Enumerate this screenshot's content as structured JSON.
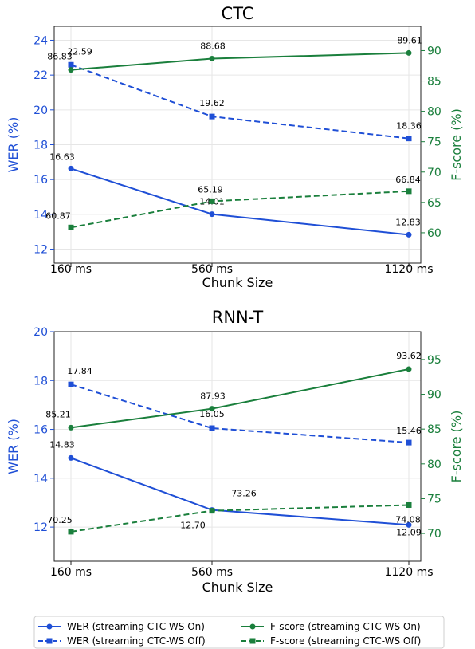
{
  "chart_data": [
    {
      "type": "line",
      "title": "CTC",
      "xlabel": "Chunk Size",
      "ylabel_left": "WER (%)",
      "ylabel_right": "F-score (%)",
      "categories": [
        "160 ms",
        "560 ms",
        "1120 ms"
      ],
      "ylim_left": [
        11.2,
        24.8
      ],
      "yticks_left": [
        "12",
        "14",
        "16",
        "18",
        "20",
        "22",
        "24"
      ],
      "ylim_right": [
        55.0,
        94.0
      ],
      "yticks_right": [
        "60",
        "65",
        "70",
        "75",
        "80",
        "85",
        "90"
      ],
      "grid": true,
      "series": [
        {
          "name": "WER (streaming CTC-WS On)",
          "axis": "left",
          "style": "solid",
          "marker": "circle",
          "color": "#1f4fd6",
          "values": [
            16.63,
            14.01,
            12.83
          ],
          "labels": [
            "16.63",
            "14.01",
            "12.83"
          ]
        },
        {
          "name": "WER (streaming CTC-WS Off)",
          "axis": "left",
          "style": "dashed",
          "marker": "square",
          "color": "#1f4fd6",
          "values": [
            22.59,
            19.62,
            18.36
          ],
          "labels": [
            "22.59",
            "19.62",
            "18.36"
          ]
        },
        {
          "name": "F-score (streaming CTC-WS On)",
          "axis": "right",
          "style": "solid",
          "marker": "circle",
          "color": "#1a7f3c",
          "values": [
            86.83,
            88.68,
            89.61
          ],
          "labels": [
            "86.83",
            "88.68",
            "89.61"
          ]
        },
        {
          "name": "F-score (streaming CTC-WS Off)",
          "axis": "right",
          "style": "dashed",
          "marker": "square",
          "color": "#1a7f3c",
          "values": [
            60.87,
            65.19,
            66.84
          ],
          "labels": [
            "60.87",
            "65.19",
            "66.84"
          ]
        }
      ]
    },
    {
      "type": "line",
      "title": "RNN-T",
      "xlabel": "Chunk Size",
      "ylabel_left": "WER (%)",
      "ylabel_right": "F-score (%)",
      "categories": [
        "160 ms",
        "560 ms",
        "1120 ms"
      ],
      "ylim_left": [
        10.6,
        20.0
      ],
      "yticks_left": [
        "12",
        "14",
        "16",
        "18",
        "20"
      ],
      "ylim_right": [
        66.0,
        99.0
      ],
      "yticks_right": [
        "70",
        "75",
        "80",
        "85",
        "90",
        "95"
      ],
      "grid": true,
      "series": [
        {
          "name": "WER (streaming CTC-WS On)",
          "axis": "left",
          "style": "solid",
          "marker": "circle",
          "color": "#1f4fd6",
          "values": [
            14.83,
            12.7,
            12.09
          ],
          "labels": [
            "14.83",
            "12.70",
            "12.09"
          ]
        },
        {
          "name": "WER (streaming CTC-WS Off)",
          "axis": "left",
          "style": "dashed",
          "marker": "square",
          "color": "#1f4fd6",
          "values": [
            17.84,
            16.05,
            15.46
          ],
          "labels": [
            "17.84",
            "16.05",
            "15.46"
          ]
        },
        {
          "name": "F-score (streaming CTC-WS On)",
          "axis": "right",
          "style": "solid",
          "marker": "circle",
          "color": "#1a7f3c",
          "values": [
            85.21,
            87.93,
            93.62
          ],
          "labels": [
            "85.21",
            "87.93",
            "93.62"
          ]
        },
        {
          "name": "F-score (streaming CTC-WS Off)",
          "axis": "right",
          "style": "dashed",
          "marker": "square",
          "color": "#1a7f3c",
          "values": [
            70.25,
            73.26,
            74.08
          ],
          "labels": [
            "70.25",
            "73.26",
            "74.08"
          ]
        }
      ]
    }
  ],
  "legend": {
    "placement": "bottom",
    "items": [
      {
        "label": "WER (streaming CTC-WS On)",
        "color": "#1f4fd6",
        "style": "solid",
        "marker": "circle"
      },
      {
        "label": "F-score (streaming CTC-WS On)",
        "color": "#1a7f3c",
        "style": "solid",
        "marker": "circle"
      },
      {
        "label": "WER (streaming CTC-WS Off)",
        "color": "#1f4fd6",
        "style": "dashed",
        "marker": "square"
      },
      {
        "label": "F-score (streaming CTC-WS Off)",
        "color": "#1a7f3c",
        "style": "dashed",
        "marker": "square"
      }
    ]
  }
}
